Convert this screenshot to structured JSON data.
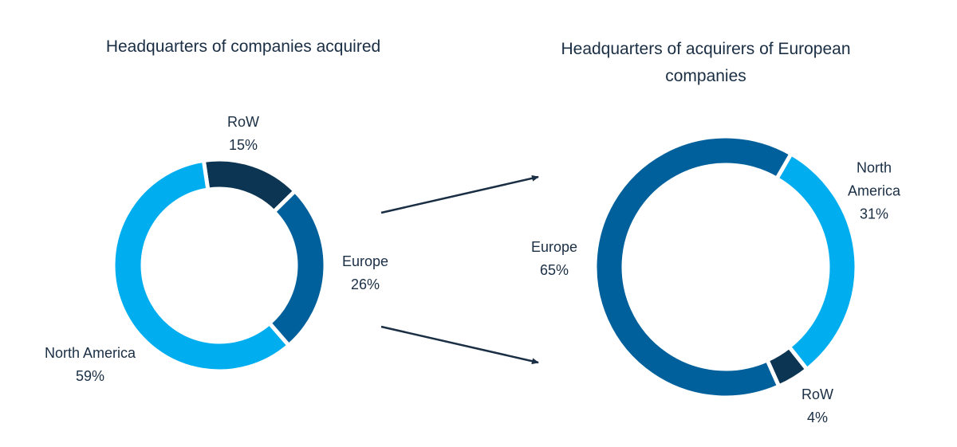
{
  "chart_data": [
    {
      "type": "pie",
      "title": "Headquarters of companies acquired",
      "categories": [
        "RoW",
        "Europe",
        "North America"
      ],
      "values": [
        15,
        26,
        59
      ],
      "value_labels": [
        "15%",
        "26%",
        "59%"
      ],
      "colors": [
        "#0b3553",
        "#00609c",
        "#00aeef"
      ]
    },
    {
      "type": "pie",
      "title": "Headquarters of acquirers of European companies",
      "categories": [
        "North America",
        "RoW",
        "Europe"
      ],
      "values": [
        31,
        4,
        65
      ],
      "value_labels": [
        "31%",
        "4%",
        "65%"
      ],
      "colors": [
        "#00aeef",
        "#0b3553",
        "#00609c"
      ]
    }
  ]
}
